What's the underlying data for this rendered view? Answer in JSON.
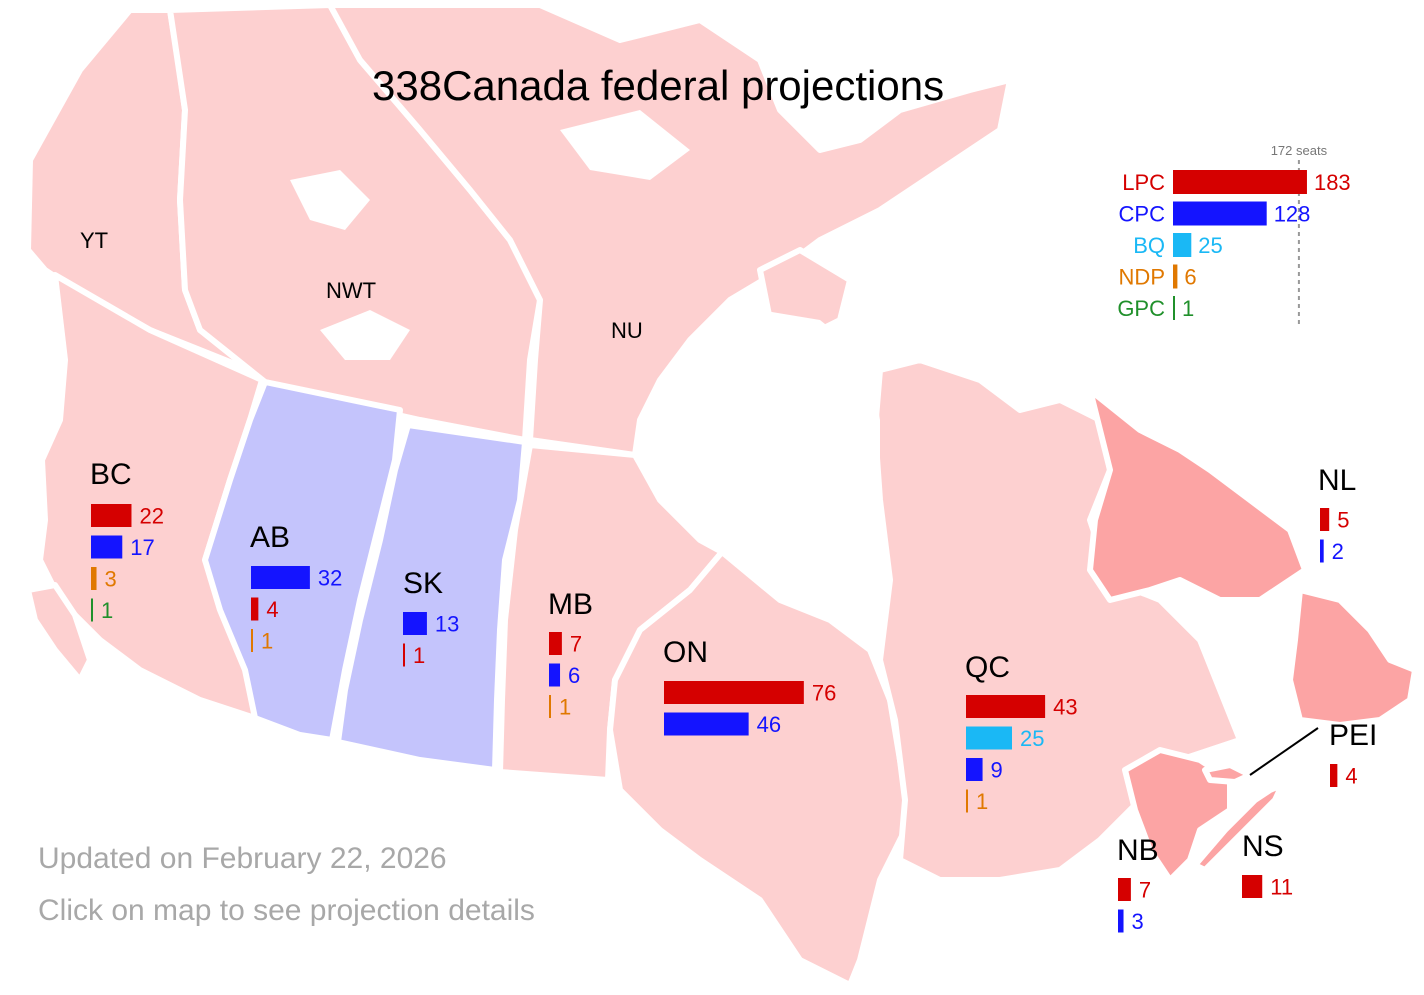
{
  "title": "338Canada federal projections",
  "footer": {
    "updated": "Updated on February 22, 2026",
    "hint": "Click on map to see projection details"
  },
  "colors": {
    "LPC": "#d50000",
    "CPC": "#1414ff",
    "BQ": "#1ab8f5",
    "NDP": "#e07800",
    "GPC": "#20902b",
    "region_liberal": "#fdd0d0",
    "region_conservative": "#c4c4fc",
    "region_liberal_strong": "#fca4a4"
  },
  "majority": {
    "label": "172 seats",
    "seats": 172
  },
  "national": [
    {
      "party": "LPC",
      "seats": 183
    },
    {
      "party": "CPC",
      "seats": 128
    },
    {
      "party": "BQ",
      "seats": 25
    },
    {
      "party": "NDP",
      "seats": 6
    },
    {
      "party": "GPC",
      "seats": 1
    }
  ],
  "territories": [
    {
      "code": "YT"
    },
    {
      "code": "NWT"
    },
    {
      "code": "NU"
    }
  ],
  "provinces": [
    {
      "code": "BC",
      "results": [
        {
          "party": "LPC",
          "seats": 22
        },
        {
          "party": "CPC",
          "seats": 17
        },
        {
          "party": "NDP",
          "seats": 3
        },
        {
          "party": "GPC",
          "seats": 1
        }
      ]
    },
    {
      "code": "AB",
      "results": [
        {
          "party": "CPC",
          "seats": 32
        },
        {
          "party": "LPC",
          "seats": 4
        },
        {
          "party": "NDP",
          "seats": 1
        }
      ]
    },
    {
      "code": "SK",
      "results": [
        {
          "party": "CPC",
          "seats": 13
        },
        {
          "party": "LPC",
          "seats": 1
        }
      ]
    },
    {
      "code": "MB",
      "results": [
        {
          "party": "LPC",
          "seats": 7
        },
        {
          "party": "CPC",
          "seats": 6
        },
        {
          "party": "NDP",
          "seats": 1
        }
      ]
    },
    {
      "code": "ON",
      "results": [
        {
          "party": "LPC",
          "seats": 76
        },
        {
          "party": "CPC",
          "seats": 46
        }
      ]
    },
    {
      "code": "QC",
      "results": [
        {
          "party": "LPC",
          "seats": 43
        },
        {
          "party": "BQ",
          "seats": 25
        },
        {
          "party": "CPC",
          "seats": 9
        },
        {
          "party": "NDP",
          "seats": 1
        }
      ]
    },
    {
      "code": "NL",
      "results": [
        {
          "party": "LPC",
          "seats": 5
        },
        {
          "party": "CPC",
          "seats": 2
        }
      ]
    },
    {
      "code": "PEI",
      "results": [
        {
          "party": "LPC",
          "seats": 4
        }
      ]
    },
    {
      "code": "NB",
      "results": [
        {
          "party": "LPC",
          "seats": 7
        },
        {
          "party": "CPC",
          "seats": 3
        }
      ]
    },
    {
      "code": "NS",
      "results": [
        {
          "party": "LPC",
          "seats": 11
        }
      ]
    }
  ]
}
